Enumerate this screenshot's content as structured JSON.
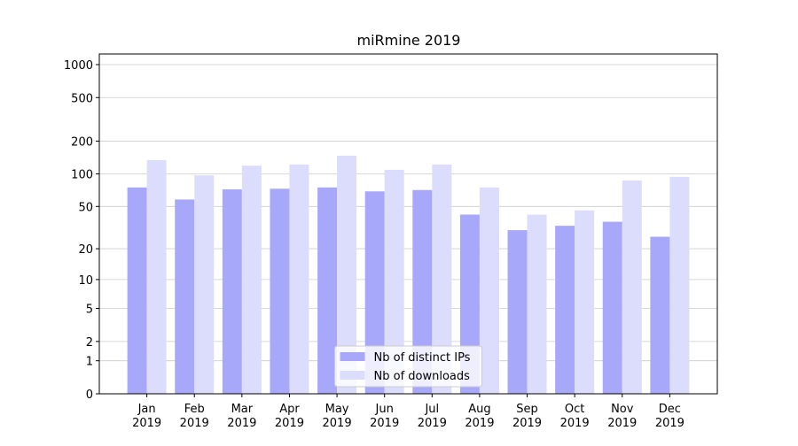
{
  "chart_data": {
    "type": "bar",
    "title": "miRmine 2019",
    "y_scale": "log1p",
    "categories": [
      "Jan\n2019",
      "Feb\n2019",
      "Mar\n2019",
      "Apr\n2019",
      "May\n2019",
      "Jun\n2019",
      "Jul\n2019",
      "Aug\n2019",
      "Sep\n2019",
      "Oct\n2019",
      "Nov\n2019",
      "Dec\n2019"
    ],
    "series": [
      {
        "name": "Nb of distinct IPs",
        "color": "#a8a8fa",
        "values": [
          75,
          58,
          72,
          73,
          75,
          69,
          71,
          42,
          30,
          33,
          36,
          26
        ]
      },
      {
        "name": "Nb of downloads",
        "color": "#dcdcfc",
        "values": [
          134,
          97,
          119,
          122,
          147,
          109,
          122,
          75,
          42,
          46,
          87,
          94
        ]
      }
    ],
    "ylim": [
      0,
      1250
    ],
    "yticks": [
      0,
      1,
      2,
      5,
      10,
      20,
      50,
      100,
      200,
      500,
      1000
    ],
    "grid": true,
    "legend": "lower center"
  }
}
